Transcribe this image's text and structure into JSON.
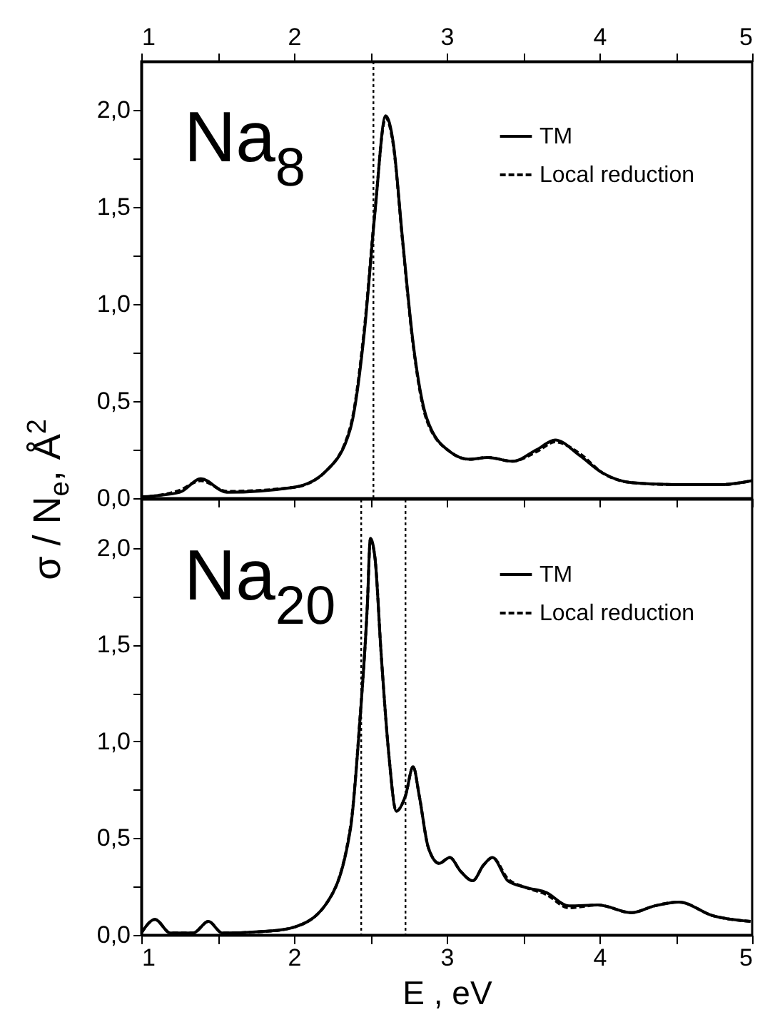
{
  "chart_data": [
    {
      "type": "line",
      "annotations": [
        "Na$_{8}$"
      ],
      "ylabel": "σ / N$_{e}$, Å$^{2}$",
      "legend": "top right",
      "tick_labels": "y",
      "xlim": [
        1,
        5
      ],
      "xticks": [
        {
          "value": 1,
          "label": null
        },
        {
          "value": 1.5,
          "label": null
        },
        {
          "value": 2,
          "label": null
        },
        {
          "value": 2.5,
          "label": null
        },
        {
          "value": 3,
          "label": null
        },
        {
          "value": 3.5,
          "label": null
        },
        {
          "value": 4,
          "label": null
        },
        {
          "value": 4.5,
          "label": null
        },
        {
          "value": 5,
          "label": null
        }
      ],
      "x2lim": [
        1,
        5
      ],
      "x2ticks": [
        1,
        {
          "value": 1.5,
          "label": null
        },
        2,
        {
          "value": 2.5,
          "label": null
        },
        3,
        {
          "value": 3.5,
          "label": null
        },
        4,
        {
          "value": 4.5,
          "label": null
        },
        5
      ],
      "ylim": [
        0,
        2.25
      ],
      "yticks": [
        {
          "value": 0,
          "label": "0,0"
        },
        {
          "value": 0.25,
          "label": null
        },
        {
          "value": 0.5,
          "label": "0,5"
        },
        {
          "value": 0.75,
          "label": null
        },
        {
          "value": 1,
          "label": "1,0"
        },
        {
          "value": 1.25,
          "label": null
        },
        {
          "value": 1.5,
          "label": "1,5"
        },
        {
          "value": 1.75,
          "label": null
        },
        {
          "value": 2,
          "label": "2,0"
        }
      ],
      "ref_lines": [
        {
          "axis": "x",
          "value": 2.52,
          "line_style": "dotted"
        }
      ],
      "series": [
        {
          "name": "TM",
          "color": "#000000",
          "line_style": "solid",
          "x": [
            1,
            1.25,
            1.39,
            1.56,
            2.0,
            2.21,
            2.37,
            2.46,
            2.53,
            2.6,
            2.65,
            2.71,
            2.78,
            2.87,
            3.02,
            3.15,
            3.27,
            3.43,
            3.59,
            3.71,
            3.87,
            4.02,
            4.21,
            4.49,
            4.8,
            5.0
          ],
          "values": [
            0.007,
            0.03,
            0.1,
            0.03,
            0.056,
            0.14,
            0.36,
            0.85,
            1.47,
            1.97,
            1.83,
            1.34,
            0.8,
            0.41,
            0.24,
            0.2,
            0.21,
            0.19,
            0.25,
            0.3,
            0.22,
            0.13,
            0.08,
            0.07,
            0.07,
            0.09
          ]
        },
        {
          "name": "Local reduction",
          "color": "#000000",
          "line_style": "dashed",
          "x": [
            1,
            1.25,
            1.39,
            1.56,
            2.0,
            2.21,
            2.37,
            2.46,
            2.53,
            2.6,
            2.65,
            2.71,
            2.78,
            2.87,
            3.02,
            3.15,
            3.27,
            3.43,
            3.59,
            3.71,
            3.87,
            4.02,
            4.21,
            4.49,
            4.8,
            5.0
          ],
          "values": [
            0.005,
            0.04,
            0.09,
            0.035,
            0.056,
            0.14,
            0.37,
            0.87,
            1.48,
            1.96,
            1.82,
            1.33,
            0.79,
            0.4,
            0.24,
            0.2,
            0.21,
            0.19,
            0.24,
            0.29,
            0.23,
            0.13,
            0.08,
            0.07,
            0.07,
            0.09
          ]
        }
      ]
    },
    {
      "type": "line",
      "annotations": [
        "Na$_{20}$"
      ],
      "xlabel": "E , eV",
      "legend": "top right",
      "xlim": [
        1,
        5
      ],
      "xticks": [
        1,
        {
          "value": 1.5,
          "label": null
        },
        2,
        {
          "value": 2.5,
          "label": null
        },
        3,
        {
          "value": 3.5,
          "label": null
        },
        4,
        {
          "value": 4.5,
          "label": null
        },
        5
      ],
      "ylim": [
        0,
        2.25
      ],
      "yticks": [
        {
          "value": 0,
          "label": "0,0"
        },
        {
          "value": 0.25,
          "label": null
        },
        {
          "value": 0.5,
          "label": "0,5"
        },
        {
          "value": 0.75,
          "label": null
        },
        {
          "value": 1,
          "label": "1,0"
        },
        {
          "value": 1.25,
          "label": null
        },
        {
          "value": 1.5,
          "label": "1,5"
        },
        {
          "value": 1.75,
          "label": null
        },
        {
          "value": 2,
          "label": "2,0"
        }
      ],
      "ref_lines": [
        {
          "axis": "x",
          "value": 2.44,
          "line_style": "dotted"
        },
        {
          "axis": "x",
          "value": 2.73,
          "line_style": "dotted"
        }
      ],
      "series": [
        {
          "name": "TM",
          "color": "#000000",
          "line_style": "solid",
          "x": [
            1.0,
            1.09,
            1.19,
            1.34,
            1.44,
            1.53,
            1.84,
            2.0,
            2.21,
            2.37,
            2.43,
            2.48,
            2.5,
            2.53,
            2.57,
            2.62,
            2.67,
            2.73,
            2.78,
            2.82,
            2.88,
            2.95,
            3.02,
            3.09,
            3.17,
            3.24,
            3.3,
            3.4,
            3.52,
            3.65,
            3.8,
            3.99,
            4.21,
            4.36,
            4.52,
            4.74,
            4.99
          ],
          "values": [
            0.01,
            0.08,
            0.01,
            0.01,
            0.07,
            0.01,
            0.02,
            0.04,
            0.16,
            0.55,
            1.09,
            1.7,
            2.05,
            1.95,
            1.46,
            0.94,
            0.64,
            0.72,
            0.87,
            0.72,
            0.45,
            0.37,
            0.4,
            0.33,
            0.28,
            0.36,
            0.4,
            0.28,
            0.245,
            0.22,
            0.15,
            0.155,
            0.115,
            0.15,
            0.17,
            0.1,
            0.07
          ]
        },
        {
          "name": "Local reduction",
          "color": "#000000",
          "line_style": "dashed",
          "x": [
            1.0,
            1.09,
            1.19,
            1.34,
            1.44,
            1.53,
            1.84,
            2.0,
            2.21,
            2.37,
            2.43,
            2.48,
            2.5,
            2.53,
            2.57,
            2.62,
            2.67,
            2.73,
            2.78,
            2.82,
            2.88,
            2.95,
            3.02,
            3.09,
            3.17,
            3.24,
            3.3,
            3.4,
            3.52,
            3.65,
            3.8,
            3.99,
            4.21,
            4.36,
            4.52,
            4.74,
            4.99
          ],
          "values": [
            0.01,
            0.08,
            0.01,
            0.01,
            0.07,
            0.01,
            0.02,
            0.04,
            0.16,
            0.56,
            1.1,
            1.7,
            2.04,
            1.95,
            1.46,
            0.94,
            0.64,
            0.72,
            0.87,
            0.72,
            0.45,
            0.37,
            0.4,
            0.33,
            0.28,
            0.36,
            0.4,
            0.29,
            0.245,
            0.21,
            0.14,
            0.155,
            0.115,
            0.15,
            0.17,
            0.1,
            0.07
          ]
        }
      ]
    }
  ]
}
